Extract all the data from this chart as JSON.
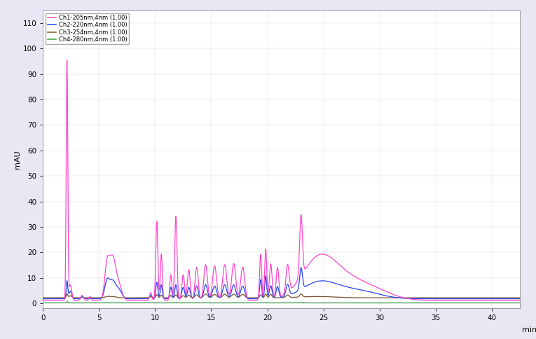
{
  "ylabel": "mAU",
  "xlabel": "min",
  "xlim": [
    0.0,
    42.5
  ],
  "ylim": [
    -2,
    115
  ],
  "yticks": [
    0,
    10,
    20,
    30,
    40,
    50,
    60,
    70,
    80,
    90,
    100,
    110
  ],
  "xticks": [
    0.0,
    5.0,
    10.0,
    15.0,
    20.0,
    25.0,
    30.0,
    35.0,
    40.0
  ],
  "legend_labels": [
    "Ch1-205nm,4nm (1.00)",
    "Ch2-220nm,4nm (1.00)",
    "Ch3-254nm,4nm (1.00)",
    "Ch4-280nm,4nm (1.00)"
  ],
  "legend_colors": [
    "#FF55CC",
    "#3355EE",
    "#886633",
    "#44AA44"
  ],
  "bg_color": "#E8E8F4",
  "plot_bg": "#FFFFFF",
  "line_width": 0.9,
  "ch1_color": "#FF44CC",
  "ch2_color": "#2244EE",
  "ch3_color": "#7A5030",
  "ch4_color": "#339944"
}
